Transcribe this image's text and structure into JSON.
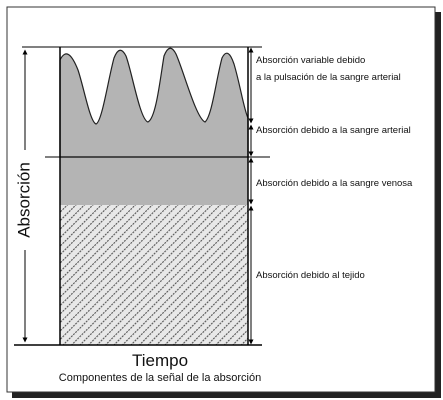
{
  "axis_label": "Absorción",
  "x_label": "Tiempo",
  "caption": "Componentes de la señal de la absorción",
  "annotations": [
    {
      "lines": [
        "Absorción variable debido",
        "a la pulsación de la sangre arterial"
      ]
    },
    {
      "lines": [
        "Absorción debido a la sangre arterial"
      ]
    },
    {
      "lines": [
        "Absorción debido a la sangre venosa"
      ]
    },
    {
      "lines": [
        "Absorción debido al tejido"
      ]
    }
  ]
}
